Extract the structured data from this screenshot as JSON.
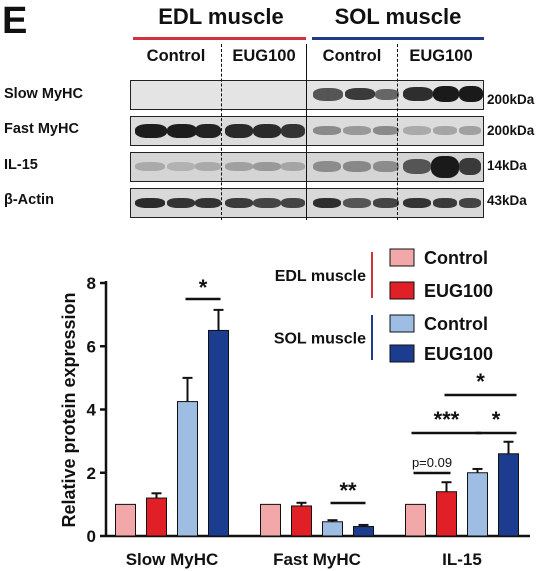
{
  "panel_letter": "E",
  "blot": {
    "muscles": [
      {
        "name": "EDL muscle",
        "color": "#d1333a"
      },
      {
        "name": "SOL muscle",
        "color": "#1f3c8c"
      }
    ],
    "groups": [
      "Control",
      "EUG100",
      "Control",
      "EUG100"
    ],
    "rows": [
      {
        "label": "Slow MyHC",
        "mw": "200kDa"
      },
      {
        "label": "Fast MyHC",
        "mw": "200kDa"
      },
      {
        "label": "IL-15",
        "mw": "14kDa"
      },
      {
        "label": "β-Actin",
        "mw": "43kDa"
      }
    ]
  },
  "chart_data": {
    "type": "bar",
    "ylabel": "Relative protein expression",
    "ylim": [
      0,
      8
    ],
    "yticks": [
      "0",
      "2",
      "4",
      "6",
      "8"
    ],
    "categories": [
      "Slow MyHC",
      "Fast MyHC",
      "IL-15"
    ],
    "legend_groups": [
      {
        "label": "EDL muscle",
        "line_color": "#d1333a"
      },
      {
        "label": "SOL muscle",
        "line_color": "#1f3c8c"
      }
    ],
    "series": [
      {
        "name": "Control",
        "group": "EDL muscle",
        "color": "#f2a7a9",
        "values": [
          1.0,
          1.0,
          1.0
        ],
        "errors": [
          0,
          0,
          0
        ]
      },
      {
        "name": "EUG100",
        "group": "EDL muscle",
        "color": "#e01f26",
        "values": [
          1.2,
          0.95,
          1.4
        ],
        "errors": [
          0.15,
          0.1,
          0.3
        ]
      },
      {
        "name": "Control",
        "group": "SOL muscle",
        "color": "#9dbde3",
        "values": [
          4.25,
          0.45,
          2.0
        ],
        "errors": [
          0.75,
          0.05,
          0.12
        ]
      },
      {
        "name": "EUG100",
        "group": "SOL muscle",
        "color": "#1b3c8f",
        "values": [
          6.5,
          0.3,
          2.6
        ],
        "errors": [
          0.65,
          0.05,
          0.38
        ]
      }
    ],
    "annotations": [
      "*",
      "**",
      "***",
      "*",
      "*",
      "p=0.09"
    ]
  }
}
